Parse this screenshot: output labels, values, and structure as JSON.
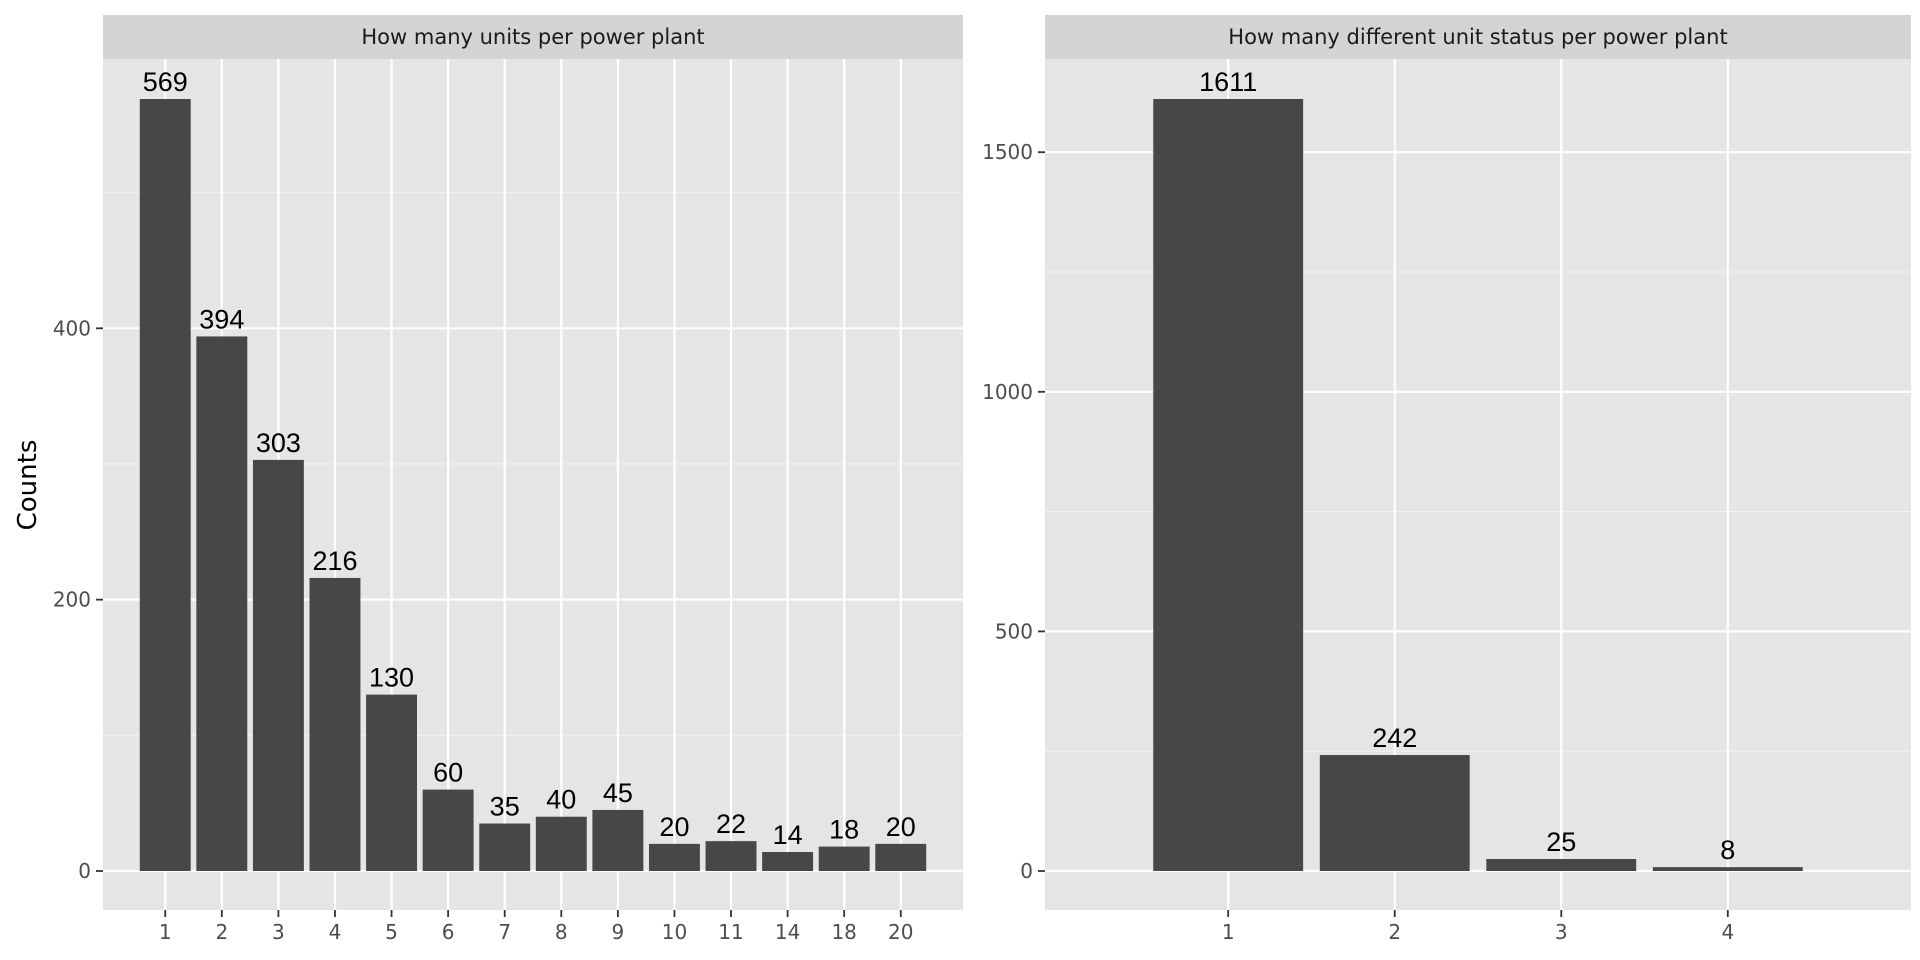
{
  "chart_data": [
    {
      "type": "bar",
      "title": "How many units per power plant",
      "ylabel": "Counts",
      "categories": [
        "1",
        "2",
        "3",
        "4",
        "5",
        "6",
        "7",
        "8",
        "9",
        "10",
        "11",
        "14",
        "18",
        "20"
      ],
      "values": [
        569,
        394,
        303,
        216,
        130,
        60,
        35,
        40,
        45,
        20,
        22,
        14,
        18,
        20
      ],
      "ylim": [
        0,
        600
      ],
      "yticks": [
        0,
        200,
        400
      ],
      "grid": true,
      "legend": "none"
    },
    {
      "type": "bar",
      "title": "How many different unit status per power plant",
      "ylabel": "",
      "categories": [
        "1",
        "2",
        "3",
        "4"
      ],
      "values": [
        1611,
        242,
        25,
        8
      ],
      "ylim": [
        0,
        1700
      ],
      "yticks": [
        0,
        500,
        1000,
        1500
      ],
      "grid": true,
      "legend": "none"
    }
  ],
  "colors": {
    "bar": "#474747",
    "panel": "#e5e5e5",
    "strip": "#d4d4d4",
    "grid": "#ffffff"
  }
}
